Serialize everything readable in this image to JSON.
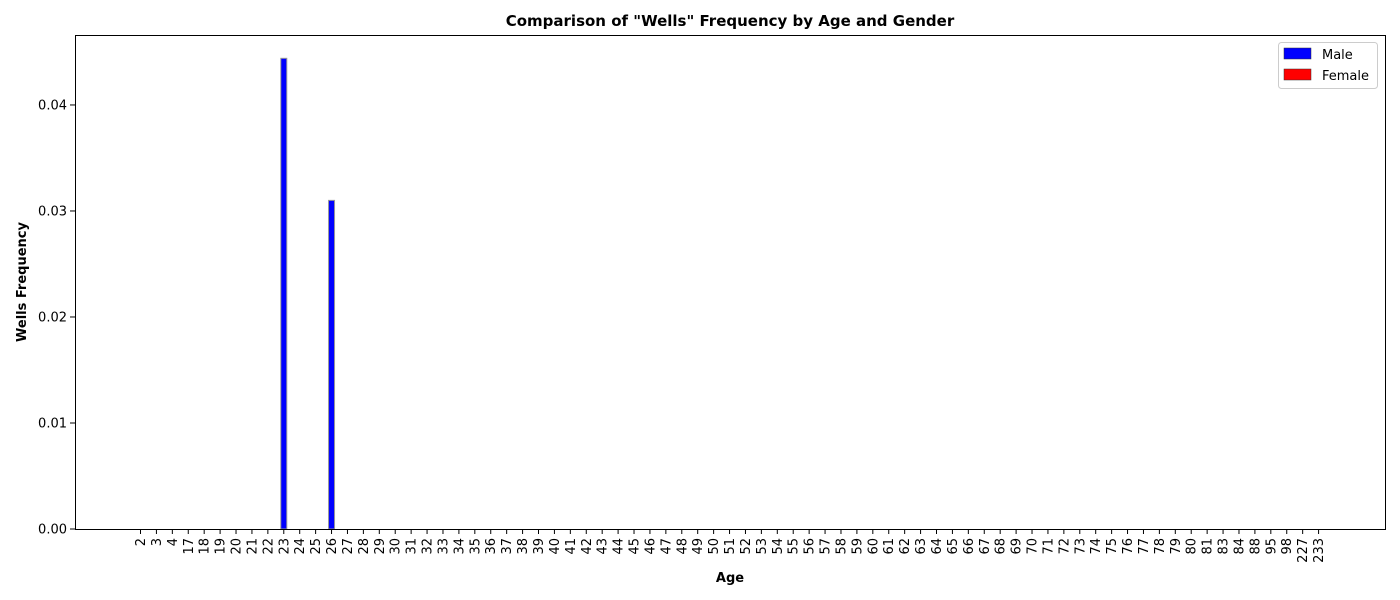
{
  "chart_data": {
    "type": "bar",
    "title": "Comparison of \"Wells\" Frequency by Age and Gender",
    "xlabel": "Age",
    "ylabel": "Wells Frequency",
    "ylim": [
      0,
      0.0466
    ],
    "yticks": [
      "0.00",
      "0.01",
      "0.02",
      "0.03",
      "0.04"
    ],
    "categories": [
      "2",
      "3",
      "4",
      "17",
      "18",
      "19",
      "20",
      "21",
      "22",
      "23",
      "24",
      "25",
      "26",
      "27",
      "28",
      "29",
      "30",
      "31",
      "32",
      "33",
      "34",
      "35",
      "36",
      "37",
      "38",
      "39",
      "40",
      "41",
      "42",
      "43",
      "44",
      "45",
      "46",
      "47",
      "48",
      "49",
      "50",
      "51",
      "52",
      "53",
      "54",
      "55",
      "56",
      "57",
      "58",
      "59",
      "60",
      "61",
      "62",
      "63",
      "64",
      "65",
      "66",
      "67",
      "68",
      "69",
      "70",
      "71",
      "72",
      "73",
      "74",
      "75",
      "76",
      "77",
      "78",
      "79",
      "80",
      "81",
      "83",
      "84",
      "88",
      "95",
      "98",
      "227",
      "233"
    ],
    "series": [
      {
        "name": "Male",
        "color": "#0000ff",
        "values": [
          0,
          0,
          0,
          0,
          0,
          0,
          0,
          0,
          0,
          0.0444,
          0,
          0,
          0.031,
          0,
          0,
          0,
          0,
          0,
          0,
          0,
          0,
          0,
          0,
          0,
          0,
          0,
          0,
          0,
          0,
          0,
          0,
          0,
          0,
          0,
          0,
          0,
          0,
          0,
          0,
          0,
          0,
          0,
          0,
          0,
          0,
          0,
          0,
          0,
          0,
          0,
          0,
          0,
          0,
          0,
          0,
          0,
          0,
          0,
          0,
          0,
          0,
          0,
          0,
          0,
          0,
          0,
          0,
          0,
          0,
          0,
          0,
          0,
          0,
          0,
          0
        ]
      },
      {
        "name": "Female",
        "color": "#ff0000",
        "values": [
          0,
          0,
          0,
          0,
          0,
          0,
          0,
          0,
          0,
          0,
          0,
          0,
          0,
          0,
          0,
          0,
          0,
          0,
          0,
          0,
          0,
          0,
          0,
          0,
          0,
          0,
          0,
          0,
          0,
          0,
          0,
          0,
          0,
          0,
          0,
          0,
          0,
          0,
          0,
          0,
          0,
          0,
          0,
          0,
          0,
          0,
          0,
          0,
          0,
          0,
          0,
          0,
          0,
          0,
          0,
          0,
          0,
          0,
          0,
          0,
          0,
          0,
          0,
          0,
          0,
          0,
          0,
          0,
          0,
          0,
          0,
          0,
          0,
          0,
          0
        ]
      }
    ],
    "legend_position": "top-right",
    "grid": false
  }
}
